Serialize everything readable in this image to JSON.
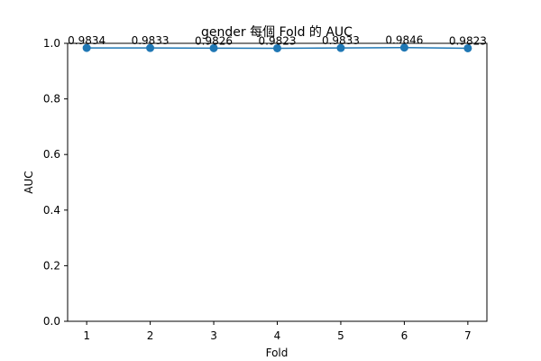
{
  "chart_data": {
    "type": "line",
    "title": "gender 每個 Fold 的 AUC",
    "xlabel": "Fold",
    "ylabel": "AUC",
    "x": [
      1,
      2,
      3,
      4,
      5,
      6,
      7
    ],
    "series": [
      {
        "values": [
          0.9834,
          0.9833,
          0.9826,
          0.9823,
          0.9833,
          0.9846,
          0.9823
        ],
        "data_labels": [
          "0.9834",
          "0.9833",
          "0.9826",
          "0.9823",
          "0.9833",
          "0.9846",
          "0.9823"
        ],
        "color": "#1f77b4",
        "marker": "circle"
      }
    ],
    "xlim": [
      0.7,
      7.3
    ],
    "ylim": [
      0.0,
      1.0
    ],
    "x_ticks": [
      "1",
      "2",
      "3",
      "4",
      "5",
      "6",
      "7"
    ],
    "y_ticks": [
      "0.0",
      "0.2",
      "0.4",
      "0.6",
      "0.8",
      "1.0"
    ],
    "grid": false
  }
}
